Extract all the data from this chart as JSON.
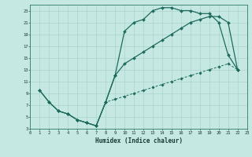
{
  "xlabel": "Humidex (Indice chaleur)",
  "bg_color": "#c5e8e3",
  "line_color": "#1e6b5e",
  "grid_color": "#aad4cc",
  "xlim": [
    0,
    23
  ],
  "ylim": [
    3,
    24
  ],
  "xticks": [
    0,
    1,
    2,
    3,
    4,
    5,
    6,
    7,
    8,
    9,
    10,
    11,
    12,
    13,
    14,
    15,
    16,
    17,
    18,
    19,
    20,
    21,
    22,
    23
  ],
  "yticks": [
    3,
    5,
    7,
    9,
    11,
    13,
    15,
    17,
    19,
    21,
    23
  ],
  "curve1_x": [
    1,
    2,
    3,
    4,
    5,
    6,
    7,
    8,
    9,
    10,
    11,
    12,
    13,
    14,
    15,
    16,
    17,
    18,
    19,
    20,
    21,
    22
  ],
  "curve1_y": [
    9.5,
    7.5,
    6,
    5.5,
    4.5,
    4,
    3.5,
    7.5,
    12,
    19.5,
    21,
    21.5,
    23,
    23.5,
    23.5,
    23,
    23,
    22.5,
    22.5,
    21,
    15.5,
    13
  ],
  "curve2_x": [
    1,
    2,
    3,
    4,
    5,
    6,
    7,
    8,
    9,
    10,
    11,
    12,
    13,
    14,
    15,
    16,
    17,
    18,
    19,
    20,
    21,
    22
  ],
  "curve2_y": [
    9.5,
    7.5,
    6,
    5.5,
    4.5,
    4,
    3.5,
    7.5,
    12,
    14,
    15,
    16,
    17,
    18,
    19,
    20,
    21,
    21.5,
    22,
    22,
    21,
    13
  ],
  "curve3_x": [
    3,
    4,
    5,
    6,
    7,
    8,
    9,
    10,
    11,
    12,
    13,
    14,
    15,
    16,
    17,
    18,
    19,
    20,
    21,
    22
  ],
  "curve3_y": [
    6,
    5.5,
    4.5,
    4,
    3.5,
    7.5,
    8,
    8.5,
    9,
    9.5,
    10,
    10.5,
    11,
    11.5,
    12,
    12.5,
    13,
    13.5,
    14,
    13
  ]
}
